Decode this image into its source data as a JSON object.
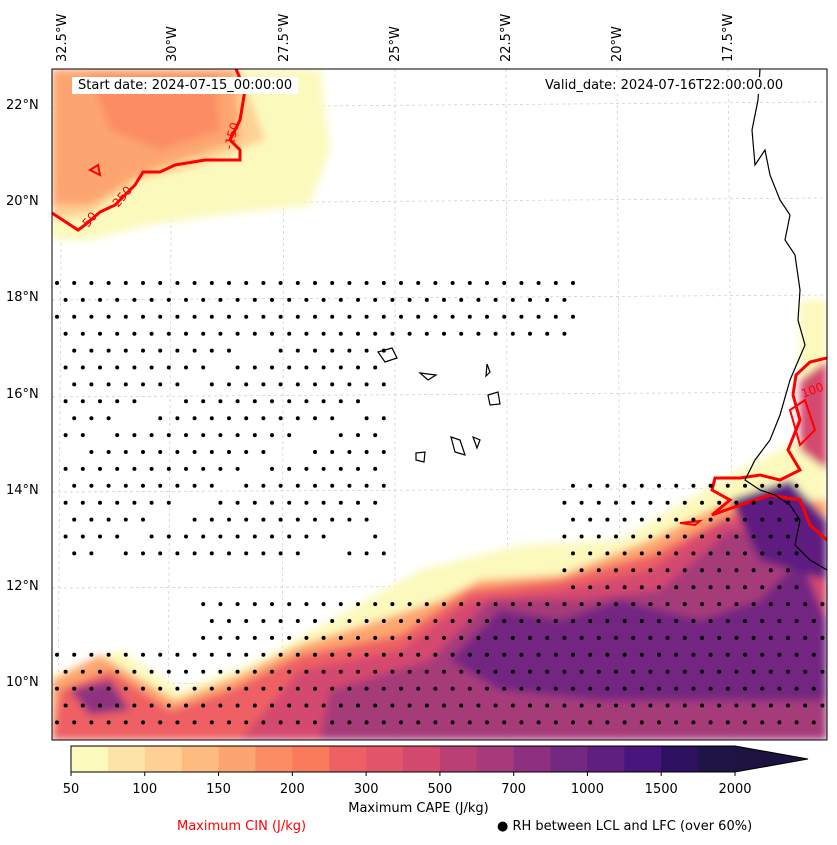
{
  "map": {
    "start_date": "Start date: 2024-07-15_00:00:00",
    "valid_date": "Valid_date: 2024-07-16T22:00:00.00",
    "lon_labels": [
      "32.5°W",
      "30°W",
      "27.5°W",
      "25°W",
      "22.5°W",
      "20°W",
      "17.5°W"
    ],
    "lat_labels": [
      "22°N",
      "20°N",
      "18°N",
      "16°N",
      "14°N",
      "12°N",
      "10°N"
    ],
    "cin_contour_labels": [
      "250",
      "50",
      "-150",
      "100"
    ]
  },
  "colorbar": {
    "label": "Maximum CAPE (J/kg)",
    "levels": [
      50,
      75,
      100,
      125,
      150,
      175,
      200,
      250,
      300,
      400,
      500,
      600,
      700,
      800,
      1000,
      1250,
      1500,
      1750,
      2000
    ],
    "tick_labels": [
      "50",
      "100",
      "150",
      "200",
      "300",
      "500",
      "700",
      "1000",
      "1500",
      "2000"
    ],
    "colors": [
      "#fcf9bd",
      "#fde4a6",
      "#fed093",
      "#febb80",
      "#fda570",
      "#fb8c63",
      "#f97b5c",
      "#ee6063",
      "#e3566a",
      "#d44a6f",
      "#b93f75",
      "#a63a7a",
      "#8e3080",
      "#732881",
      "#5e1f80",
      "#47157c",
      "#2e1060",
      "#1e1445"
    ],
    "extend_color": "#1c1340"
  },
  "legend": {
    "cin_label": "Maximum CIN (J/kg)",
    "rh_label": "RH between LCL and LFC (over 60%)",
    "rh_marker": "●",
    "cin_color": "#ff0000"
  }
}
